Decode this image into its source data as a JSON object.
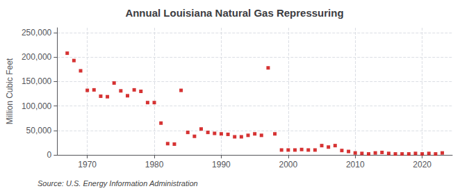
{
  "chart_data": {
    "type": "scatter",
    "title": "Annual Louisiana Natural Gas Repressuring",
    "ylabel": "Million Cubic Feet",
    "annotations": [
      "Source: U.S. Energy Information Administration"
    ],
    "x": [
      1967,
      1968,
      1969,
      1970,
      1971,
      1972,
      1973,
      1974,
      1975,
      1976,
      1977,
      1978,
      1979,
      1980,
      1981,
      1982,
      1983,
      1984,
      1985,
      1986,
      1987,
      1988,
      1989,
      1990,
      1991,
      1992,
      1993,
      1994,
      1995,
      1996,
      1997,
      1998,
      1999,
      2000,
      2001,
      2002,
      2003,
      2004,
      2005,
      2006,
      2007,
      2008,
      2009,
      2010,
      2011,
      2012,
      2013,
      2014,
      2015,
      2016,
      2017,
      2018,
      2019,
      2020,
      2021,
      2022,
      2023
    ],
    "values": [
      208000,
      193000,
      172000,
      132000,
      133000,
      120000,
      119000,
      147000,
      131000,
      121000,
      133000,
      130000,
      107000,
      107000,
      65000,
      23000,
      22000,
      132000,
      46000,
      38000,
      53000,
      46000,
      44000,
      43000,
      42000,
      37000,
      37000,
      40000,
      43000,
      40000,
      178000,
      43000,
      10000,
      10000,
      10000,
      11000,
      10000,
      10000,
      19000,
      16000,
      19000,
      9000,
      7000,
      4000,
      3000,
      2000,
      4000,
      5000,
      3000,
      2000,
      2000,
      2000,
      3000,
      2000,
      3000,
      2000,
      4000
    ],
    "color": "#cc0000",
    "marker": "square",
    "xlim": [
      1965.5,
      2024.5
    ],
    "ylim": [
      0,
      260000
    ],
    "xticks": [
      1970,
      1980,
      1990,
      2000,
      2010,
      2020
    ],
    "yticks": [
      0,
      {
        "value": 50000,
        "label": "50,000"
      },
      {
        "value": 100000,
        "label": "100,000"
      },
      {
        "value": 150000,
        "label": "150,000"
      },
      {
        "value": 200000,
        "label": "200,000"
      },
      {
        "value": 250000,
        "label": "250,000"
      }
    ],
    "grid": true
  }
}
